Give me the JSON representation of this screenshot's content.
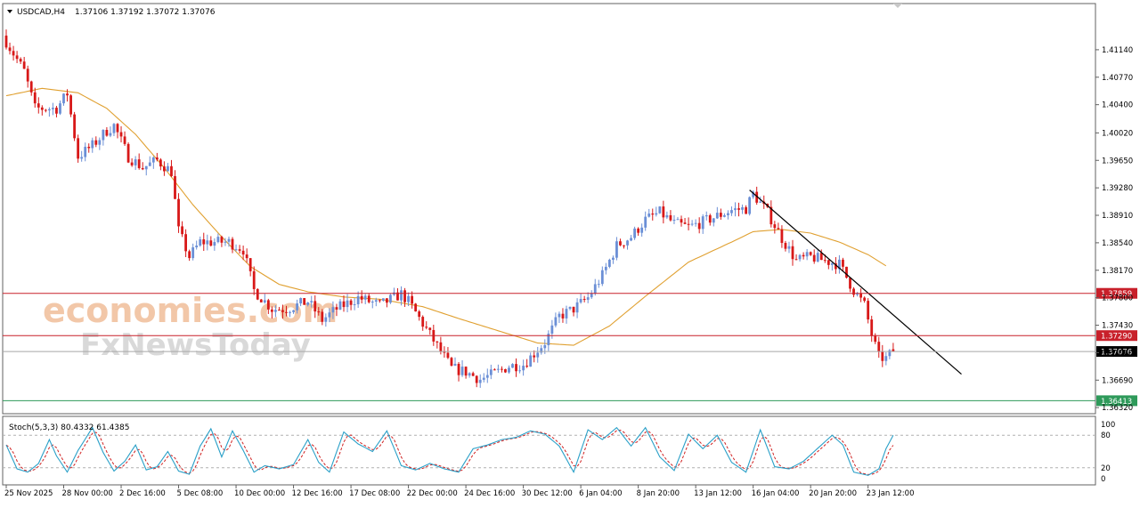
{
  "header": {
    "symbol_label": "USDCAD,H4",
    "ohlc_label": "1.37106 1.37192 1.37072 1.37076"
  },
  "watermark": {
    "line1": "economies.com",
    "line2": "FxNewsToday"
  },
  "colors": {
    "bull": "#6b8fd6",
    "bear": "#d81818",
    "ma": "#e0a030",
    "trendline": "#000000",
    "resistance": "#c8202a",
    "support": "#2e9a5a",
    "current": "#000000",
    "stoch_main": "#2aa0c8",
    "stoch_signal": "#d02020"
  },
  "chart_data": [
    {
      "type": "candlestick",
      "title": "USDCAD,H4",
      "y_ticks": [
        1.4114,
        1.4077,
        1.404,
        1.4002,
        1.3965,
        1.3928,
        1.3891,
        1.3854,
        1.3817,
        1.378,
        1.3743,
        1.3706,
        1.3669,
        1.3632
      ],
      "y_tick_labels": [
        "1.41140",
        "1.40770",
        "1.40400",
        "1.40020",
        "1.39650",
        "1.39280",
        "1.38910",
        "1.38540",
        "1.38170",
        "1.37800",
        "1.37430",
        "1.37060",
        "1.36690",
        "1.36320"
      ],
      "ylim": [
        1.3625,
        1.4175
      ],
      "x_labels": [
        "25 Nov 2025",
        "28 Nov 00:00",
        "2 Dec 16:00",
        "5 Dec 08:00",
        "10 Dec 00:00",
        "12 Dec 16:00",
        "17 Dec 08:00",
        "22 Dec 00:00",
        "24 Dec 16:00",
        "30 Dec 12:00",
        "6 Jan 04:00",
        "8 Jan 20:00",
        "13 Jan 12:00",
        "16 Jan 04:00",
        "20 Jan 20:00",
        "23 Jan 12:00"
      ],
      "x_label_bar_index": [
        0,
        16,
        32,
        48,
        64,
        80,
        96,
        112,
        128,
        144,
        160,
        176,
        192,
        208,
        224,
        240
      ],
      "current_ohlc": {
        "open": 1.37106,
        "high": 1.37192,
        "low": 1.37072,
        "close": 1.37076
      },
      "horizontal_levels": [
        {
          "name": "resistance-1",
          "value": 1.37859,
          "label": "1.37859",
          "color": "#c8202a"
        },
        {
          "name": "resistance-2",
          "value": 1.3729,
          "label": "1.37290",
          "color": "#c8202a"
        },
        {
          "name": "current-price",
          "value": 1.37076,
          "label": "1.37076",
          "color": "#000000"
        },
        {
          "name": "support",
          "value": 1.36413,
          "label": "1.36413",
          "color": "#2e9a5a"
        }
      ],
      "trendline": {
        "from": {
          "bar": 207,
          "price": 1.3925
        },
        "to": {
          "bar": 266,
          "price": 1.3677
        }
      },
      "ma_anchors": [
        [
          0,
          1.4052
        ],
        [
          10,
          1.4062
        ],
        [
          20,
          1.4056
        ],
        [
          28,
          1.4035
        ],
        [
          36,
          1.4
        ],
        [
          44,
          1.3955
        ],
        [
          52,
          1.3905
        ],
        [
          60,
          1.3862
        ],
        [
          68,
          1.3822
        ],
        [
          76,
          1.3798
        ],
        [
          84,
          1.3788
        ],
        [
          94,
          1.3781
        ],
        [
          104,
          1.3778
        ],
        [
          116,
          1.3768
        ],
        [
          126,
          1.3752
        ],
        [
          136,
          1.3737
        ],
        [
          148,
          1.3719
        ],
        [
          158,
          1.3716
        ],
        [
          168,
          1.3742
        ],
        [
          178,
          1.3782
        ],
        [
          190,
          1.3828
        ],
        [
          202,
          1.3855
        ],
        [
          208,
          1.3869
        ],
        [
          216,
          1.3872
        ],
        [
          224,
          1.3867
        ],
        [
          232,
          1.3855
        ],
        [
          240,
          1.3838
        ],
        [
          245,
          1.3823
        ]
      ],
      "close_anchors": [
        [
          0,
          1.4125
        ],
        [
          5,
          1.4085
        ],
        [
          8,
          1.4035
        ],
        [
          14,
          1.4035
        ],
        [
          17,
          1.4055
        ],
        [
          20,
          1.397
        ],
        [
          24,
          1.3985
        ],
        [
          28,
          1.4005
        ],
        [
          30,
          1.4012
        ],
        [
          34,
          1.397
        ],
        [
          38,
          1.3955
        ],
        [
          42,
          1.3965
        ],
        [
          46,
          1.395
        ],
        [
          48,
          1.387
        ],
        [
          51,
          1.3835
        ],
        [
          54,
          1.3855
        ],
        [
          58,
          1.3855
        ],
        [
          62,
          1.3855
        ],
        [
          66,
          1.3845
        ],
        [
          69,
          1.379
        ],
        [
          74,
          1.3765
        ],
        [
          78,
          1.3765
        ],
        [
          84,
          1.3775
        ],
        [
          88,
          1.375
        ],
        [
          92,
          1.3765
        ],
        [
          98,
          1.378
        ],
        [
          104,
          1.377
        ],
        [
          110,
          1.3785
        ],
        [
          112,
          1.3775
        ],
        [
          116,
          1.3745
        ],
        [
          120,
          1.3715
        ],
        [
          124,
          1.3685
        ],
        [
          128,
          1.368
        ],
        [
          132,
          1.367
        ],
        [
          136,
          1.3678
        ],
        [
          140,
          1.3688
        ],
        [
          144,
          1.369
        ],
        [
          147,
          1.3705
        ],
        [
          150,
          1.372
        ],
        [
          154,
          1.3755
        ],
        [
          158,
          1.3765
        ],
        [
          162,
          1.378
        ],
        [
          166,
          1.381
        ],
        [
          170,
          1.385
        ],
        [
          174,
          1.3862
        ],
        [
          178,
          1.3885
        ],
        [
          182,
          1.3895
        ],
        [
          186,
          1.388
        ],
        [
          190,
          1.3875
        ],
        [
          194,
          1.3882
        ],
        [
          198,
          1.389
        ],
        [
          202,
          1.3898
        ],
        [
          206,
          1.39
        ],
        [
          208,
          1.392
        ],
        [
          212,
          1.3895
        ],
        [
          216,
          1.386
        ],
        [
          220,
          1.383
        ],
        [
          224,
          1.3835
        ],
        [
          228,
          1.383
        ],
        [
          232,
          1.3825
        ],
        [
          236,
          1.379
        ],
        [
          239,
          1.377
        ],
        [
          241,
          1.373
        ],
        [
          243,
          1.37
        ],
        [
          245,
          1.3698
        ],
        [
          247,
          1.3708
        ]
      ],
      "n_bars": 248
    },
    {
      "type": "line",
      "title": "Stoch(5,3,3) 80.4332 61.4385",
      "indicator_label": "Stoch(5,3,3) 80.4332 61.4385",
      "y_ticks": [
        100,
        80,
        20,
        0
      ],
      "y_tick_labels": [
        "100",
        "80",
        "20",
        "0"
      ],
      "ylim": [
        0,
        100
      ],
      "levels": [
        80,
        20
      ],
      "series": [
        {
          "values": [
            80.4332
          ],
          "last_value": 80.4332
        },
        {
          "values": [
            61.4385
          ],
          "last_value": 61.4385
        }
      ],
      "main_anchors": [
        [
          0,
          62
        ],
        [
          3,
          18
        ],
        [
          6,
          12
        ],
        [
          9,
          28
        ],
        [
          12,
          72
        ],
        [
          14,
          42
        ],
        [
          17,
          12
        ],
        [
          20,
          52
        ],
        [
          24,
          94
        ],
        [
          27,
          48
        ],
        [
          30,
          14
        ],
        [
          33,
          32
        ],
        [
          36,
          62
        ],
        [
          39,
          16
        ],
        [
          42,
          22
        ],
        [
          45,
          50
        ],
        [
          48,
          14
        ],
        [
          51,
          8
        ],
        [
          54,
          60
        ],
        [
          57,
          92
        ],
        [
          60,
          40
        ],
        [
          63,
          88
        ],
        [
          66,
          52
        ],
        [
          69,
          12
        ],
        [
          72,
          24
        ],
        [
          76,
          18
        ],
        [
          80,
          26
        ],
        [
          84,
          72
        ],
        [
          87,
          30
        ],
        [
          90,
          12
        ],
        [
          94,
          86
        ],
        [
          98,
          64
        ],
        [
          102,
          50
        ],
        [
          106,
          88
        ],
        [
          110,
          24
        ],
        [
          114,
          16
        ],
        [
          118,
          28
        ],
        [
          122,
          18
        ],
        [
          126,
          12
        ],
        [
          130,
          55
        ],
        [
          134,
          62
        ],
        [
          138,
          72
        ],
        [
          142,
          76
        ],
        [
          146,
          88
        ],
        [
          150,
          82
        ],
        [
          154,
          60
        ],
        [
          158,
          12
        ],
        [
          162,
          90
        ],
        [
          166,
          72
        ],
        [
          170,
          94
        ],
        [
          174,
          60
        ],
        [
          178,
          94
        ],
        [
          182,
          40
        ],
        [
          186,
          15
        ],
        [
          190,
          82
        ],
        [
          194,
          55
        ],
        [
          198,
          80
        ],
        [
          202,
          30
        ],
        [
          206,
          12
        ],
        [
          210,
          90
        ],
        [
          214,
          22
        ],
        [
          218,
          18
        ],
        [
          222,
          32
        ],
        [
          226,
          56
        ],
        [
          230,
          80
        ],
        [
          233,
          62
        ],
        [
          236,
          12
        ],
        [
          240,
          6
        ],
        [
          243,
          18
        ],
        [
          245,
          55
        ],
        [
          247,
          80
        ]
      ]
    }
  ]
}
